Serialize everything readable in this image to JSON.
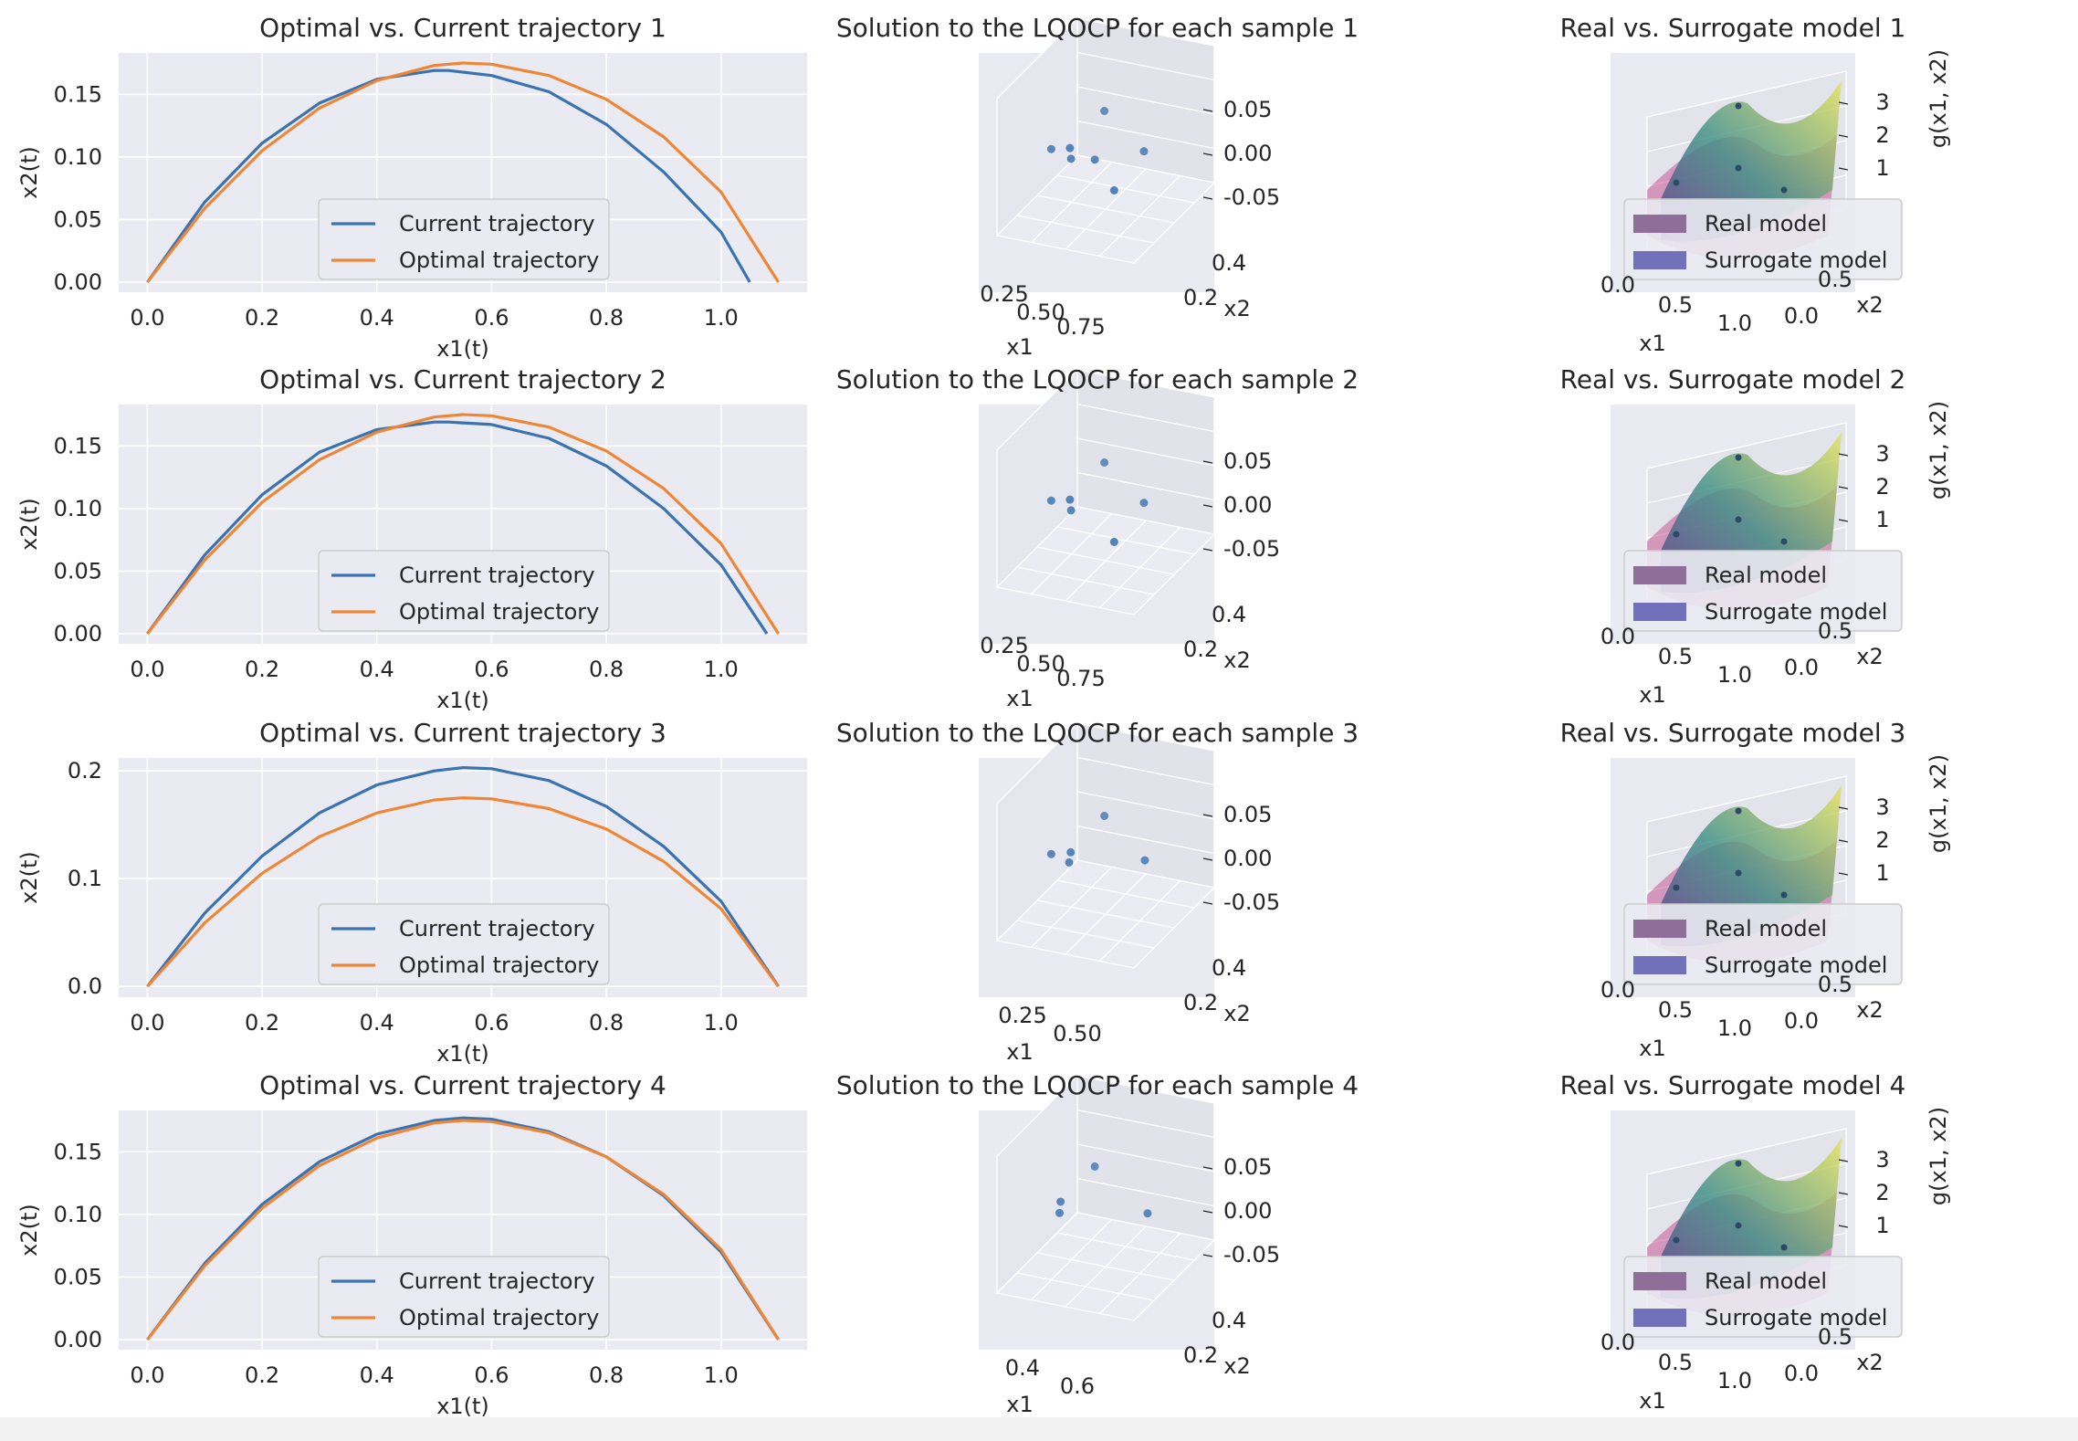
{
  "figure": {
    "line_legend": [
      "Current trajectory",
      "Optimal trajectory"
    ],
    "surface_legend": [
      "Real model",
      "Surrogate model"
    ],
    "colors": {
      "current": "#3b73b0",
      "optimal": "#ee8636",
      "panel_bg": "#eaeaf2",
      "grid": "#ffffff",
      "scatter": "#3b73b0",
      "real_model": "#8f6e9a",
      "surrogate_model": "#7170ba"
    }
  },
  "chart_data": [
    {
      "type": "line",
      "title": "Optimal vs. Current trajectory 1",
      "xlabel": "x1(t)",
      "ylabel": "x2(t)",
      "xlim": [
        -0.05,
        1.15
      ],
      "ylim": [
        -0.008,
        0.183
      ],
      "xticks": [
        "0.0",
        "0.2",
        "0.4",
        "0.6",
        "0.8",
        "1.0"
      ],
      "yticks": [
        "0.00",
        "0.05",
        "0.10",
        "0.15"
      ],
      "xtick_values": [
        0,
        0.2,
        0.4,
        0.6,
        0.8,
        1.0
      ],
      "ytick_values": [
        0,
        0.05,
        0.1,
        0.15
      ],
      "grid": true,
      "legend_position": "lower center",
      "series": [
        {
          "name": "Current trajectory",
          "x": [
            0,
            0.1,
            0.2,
            0.3,
            0.4,
            0.5,
            0.525,
            0.6,
            0.7,
            0.8,
            0.9,
            1.0,
            1.05
          ],
          "y": [
            0,
            0.064,
            0.111,
            0.143,
            0.162,
            0.169,
            0.169,
            0.165,
            0.152,
            0.126,
            0.088,
            0.04,
            0
          ]
        },
        {
          "name": "Optimal trajectory",
          "x": [
            0,
            0.1,
            0.2,
            0.3,
            0.4,
            0.5,
            0.55,
            0.6,
            0.7,
            0.8,
            0.9,
            1.0,
            1.1
          ],
          "y": [
            0,
            0.059,
            0.105,
            0.139,
            0.161,
            0.173,
            0.175,
            0.174,
            0.165,
            0.146,
            0.116,
            0.072,
            0
          ]
        }
      ]
    },
    {
      "type": "scatter",
      "title": "Solution to the LQOCP for each sample 1",
      "xlabel": "x1",
      "ylabel": "x2",
      "xticks": [
        "0.25",
        "0.50",
        "0.75"
      ],
      "yticks": [
        "0.4",
        "0.2"
      ],
      "zticks": [
        "0.05",
        "0.00",
        "-0.05"
      ],
      "zlim": [
        -0.08,
        0.08
      ],
      "points": [
        {
          "x1": 0.22,
          "x2": 0.3,
          "z": 0.0
        },
        {
          "x1": 0.38,
          "x2": 0.26,
          "z": 0.01
        },
        {
          "x1": 0.4,
          "x2": 0.24,
          "z": 0.0
        },
        {
          "x1": 0.55,
          "x2": 0.28,
          "z": 0.0
        },
        {
          "x1": 0.52,
          "x2": 0.45,
          "z": 0.04
        },
        {
          "x1": 0.85,
          "x2": 0.38,
          "z": 0.01
        },
        {
          "x1": 0.75,
          "x2": 0.18,
          "z": -0.02
        }
      ]
    },
    {
      "type": "surface",
      "title": "Real vs. Surrogate model 1",
      "xlabel": "x1",
      "ylabel": "x2",
      "zlabel": "g(x1, x2)",
      "xticks": [
        "0.0",
        "0.5",
        "1.0"
      ],
      "yticks": [
        "0.0",
        "0.5",
        "1.0"
      ],
      "zticks": [
        "3",
        "2",
        "1"
      ],
      "series": [
        "Real model",
        "Surrogate model"
      ]
    },
    {
      "type": "line",
      "title": "Optimal vs. Current trajectory 2",
      "xlabel": "x1(t)",
      "ylabel": "x2(t)",
      "xlim": [
        -0.05,
        1.15
      ],
      "ylim": [
        -0.008,
        0.183
      ],
      "xticks": [
        "0.0",
        "0.2",
        "0.4",
        "0.6",
        "0.8",
        "1.0"
      ],
      "yticks": [
        "0.00",
        "0.05",
        "0.10",
        "0.15"
      ],
      "xtick_values": [
        0,
        0.2,
        0.4,
        0.6,
        0.8,
        1.0
      ],
      "ytick_values": [
        0,
        0.05,
        0.1,
        0.15
      ],
      "grid": true,
      "legend_position": "lower center",
      "series": [
        {
          "name": "Current trajectory",
          "x": [
            0,
            0.1,
            0.2,
            0.3,
            0.4,
            0.5,
            0.525,
            0.6,
            0.7,
            0.8,
            0.9,
            1.0,
            1.08
          ],
          "y": [
            0,
            0.063,
            0.111,
            0.145,
            0.163,
            0.169,
            0.169,
            0.167,
            0.156,
            0.134,
            0.1,
            0.055,
            0
          ]
        },
        {
          "name": "Optimal trajectory",
          "x": [
            0,
            0.1,
            0.2,
            0.3,
            0.4,
            0.5,
            0.55,
            0.6,
            0.7,
            0.8,
            0.9,
            1.0,
            1.1
          ],
          "y": [
            0,
            0.059,
            0.105,
            0.139,
            0.161,
            0.173,
            0.175,
            0.174,
            0.165,
            0.146,
            0.116,
            0.072,
            0
          ]
        }
      ]
    },
    {
      "type": "scatter",
      "title": "Solution to the LQOCP for each sample 2",
      "xlabel": "x1",
      "ylabel": "x2",
      "xticks": [
        "0.25",
        "0.50",
        "0.75"
      ],
      "yticks": [
        "0.4",
        "0.2"
      ],
      "zticks": [
        "0.05",
        "0.00",
        "-0.05"
      ],
      "zlim": [
        -0.08,
        0.08
      ],
      "points": [
        {
          "x1": 0.22,
          "x2": 0.3,
          "z": 0.0
        },
        {
          "x1": 0.38,
          "x2": 0.26,
          "z": 0.01
        },
        {
          "x1": 0.4,
          "x2": 0.24,
          "z": 0.0
        },
        {
          "x1": 0.52,
          "x2": 0.45,
          "z": 0.04
        },
        {
          "x1": 0.85,
          "x2": 0.38,
          "z": 0.01
        },
        {
          "x1": 0.75,
          "x2": 0.18,
          "z": -0.02
        }
      ]
    },
    {
      "type": "surface",
      "title": "Real vs. Surrogate model 2",
      "xlabel": "x1",
      "ylabel": "x2",
      "zlabel": "g(x1, x2)",
      "xticks": [
        "0.0",
        "0.5",
        "1.0"
      ],
      "yticks": [
        "0.0",
        "0.5",
        "1.0"
      ],
      "zticks": [
        "3",
        "2",
        "1"
      ],
      "series": [
        "Real model",
        "Surrogate model"
      ]
    },
    {
      "type": "line",
      "title": "Optimal vs. Current trajectory 3",
      "xlabel": "x1(t)",
      "ylabel": "x2(t)",
      "xlim": [
        -0.05,
        1.15
      ],
      "ylim": [
        -0.01,
        0.212
      ],
      "xticks": [
        "0.0",
        "0.2",
        "0.4",
        "0.6",
        "0.8",
        "1.0"
      ],
      "yticks": [
        "0.0",
        "0.1",
        "0.2"
      ],
      "xtick_values": [
        0,
        0.2,
        0.4,
        0.6,
        0.8,
        1.0
      ],
      "ytick_values": [
        0,
        0.1,
        0.2
      ],
      "grid": true,
      "legend_position": "lower center",
      "series": [
        {
          "name": "Current trajectory",
          "x": [
            0,
            0.1,
            0.2,
            0.3,
            0.4,
            0.5,
            0.55,
            0.6,
            0.7,
            0.8,
            0.9,
            1.0,
            1.1
          ],
          "y": [
            0,
            0.068,
            0.121,
            0.161,
            0.187,
            0.2,
            0.203,
            0.202,
            0.191,
            0.167,
            0.13,
            0.079,
            0
          ]
        },
        {
          "name": "Optimal trajectory",
          "x": [
            0,
            0.1,
            0.2,
            0.3,
            0.4,
            0.5,
            0.55,
            0.6,
            0.7,
            0.8,
            0.9,
            1.0,
            1.1
          ],
          "y": [
            0,
            0.059,
            0.105,
            0.139,
            0.161,
            0.173,
            0.175,
            0.174,
            0.165,
            0.146,
            0.116,
            0.072,
            0
          ]
        }
      ]
    },
    {
      "type": "scatter",
      "title": "Solution to the LQOCP for each sample 3",
      "xlabel": "x1",
      "ylabel": "x2",
      "xticks": [
        "0.25",
        "0.50"
      ],
      "yticks": [
        "0.4",
        "0.2"
      ],
      "zticks": [
        "0.05",
        "0.00",
        "-0.05"
      ],
      "zlim": [
        -0.08,
        0.08
      ],
      "points": [
        {
          "x1": 0.22,
          "x2": 0.3,
          "z": 0.0
        },
        {
          "x1": 0.38,
          "x2": 0.27,
          "z": 0.01
        },
        {
          "x1": 0.38,
          "x2": 0.25,
          "z": 0.0
        },
        {
          "x1": 0.52,
          "x2": 0.45,
          "z": 0.04
        },
        {
          "x1": 0.88,
          "x2": 0.34,
          "z": 0.01
        }
      ]
    },
    {
      "type": "surface",
      "title": "Real vs. Surrogate model 3",
      "xlabel": "x1",
      "ylabel": "x2",
      "zlabel": "g(x1, x2)",
      "xticks": [
        "0.0",
        "0.5",
        "1.0"
      ],
      "yticks": [
        "0.0",
        "0.5",
        "1.0"
      ],
      "zticks": [
        "3",
        "2",
        "1"
      ],
      "series": [
        "Real model",
        "Surrogate model"
      ]
    },
    {
      "type": "line",
      "title": "Optimal vs. Current trajectory 4",
      "xlabel": "x1(t)",
      "ylabel": "x2(t)",
      "xlim": [
        -0.05,
        1.15
      ],
      "ylim": [
        -0.008,
        0.183
      ],
      "xticks": [
        "0.0",
        "0.2",
        "0.4",
        "0.6",
        "0.8",
        "1.0"
      ],
      "yticks": [
        "0.00",
        "0.05",
        "0.10",
        "0.15"
      ],
      "xtick_values": [
        0,
        0.2,
        0.4,
        0.6,
        0.8,
        1.0
      ],
      "ytick_values": [
        0,
        0.05,
        0.1,
        0.15
      ],
      "grid": true,
      "legend_position": "lower center",
      "series": [
        {
          "name": "Current trajectory",
          "x": [
            0,
            0.1,
            0.2,
            0.3,
            0.4,
            0.5,
            0.55,
            0.6,
            0.7,
            0.8,
            0.9,
            1.0,
            1.1
          ],
          "y": [
            0,
            0.061,
            0.108,
            0.142,
            0.164,
            0.175,
            0.177,
            0.176,
            0.166,
            0.146,
            0.115,
            0.07,
            0
          ]
        },
        {
          "name": "Optimal trajectory",
          "x": [
            0,
            0.1,
            0.2,
            0.3,
            0.4,
            0.5,
            0.55,
            0.6,
            0.7,
            0.8,
            0.9,
            1.0,
            1.1
          ],
          "y": [
            0,
            0.059,
            0.105,
            0.139,
            0.161,
            0.173,
            0.175,
            0.174,
            0.165,
            0.146,
            0.116,
            0.072,
            0
          ]
        }
      ]
    },
    {
      "type": "scatter",
      "title": "Solution to the LQOCP for each sample 4",
      "xlabel": "x1",
      "ylabel": "x2",
      "xticks": [
        "0.4",
        "0.6"
      ],
      "yticks": [
        "0.4",
        "0.2"
      ],
      "zticks": [
        "0.05",
        "0.00",
        "-0.05"
      ],
      "zlim": [
        -0.08,
        0.08
      ],
      "points": [
        {
          "x1": 0.3,
          "x2": 0.28,
          "z": 0.01
        },
        {
          "x1": 0.31,
          "x2": 0.25,
          "z": 0.0
        },
        {
          "x1": 0.45,
          "x2": 0.45,
          "z": 0.04
        },
        {
          "x1": 0.9,
          "x2": 0.34,
          "z": 0.01
        }
      ]
    },
    {
      "type": "surface",
      "title": "Real vs. Surrogate model 4",
      "xlabel": "x1",
      "ylabel": "x2",
      "zlabel": "g(x1, x2)",
      "xticks": [
        "0.0",
        "0.5",
        "1.0"
      ],
      "yticks": [
        "0.0",
        "0.5",
        "1.0"
      ],
      "zticks": [
        "3",
        "2",
        "1"
      ],
      "series": [
        "Real model",
        "Surrogate model"
      ]
    }
  ]
}
